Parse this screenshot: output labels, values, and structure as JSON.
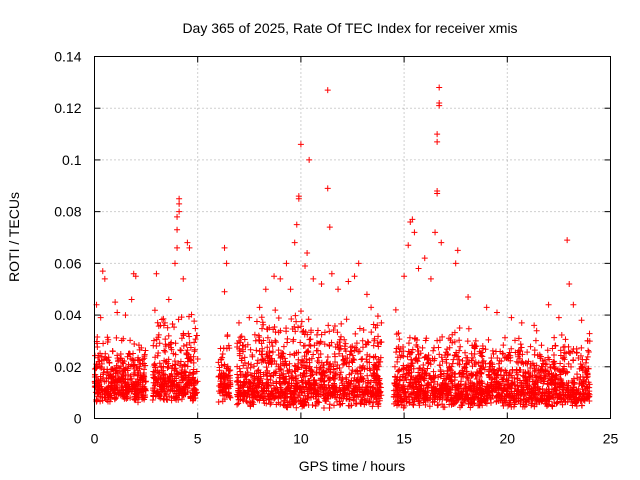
{
  "chart_data": {
    "type": "scatter",
    "title": "Day 365 of 2025, Rate Of TEC Index for receiver xmis",
    "xlabel": "GPS time / hours",
    "ylabel": "ROTI / TECUs",
    "xlim": [
      0,
      25
    ],
    "ylim": [
      0,
      0.14
    ],
    "xticks": [
      0,
      5,
      10,
      15,
      20,
      25
    ],
    "xtick_labels": [
      "0",
      "5",
      "10",
      "15",
      "20",
      "25"
    ],
    "yticks": [
      0,
      0.02,
      0.04,
      0.06,
      0.08,
      0.1,
      0.12,
      0.14
    ],
    "ytick_labels": [
      "0",
      "0.02",
      "0.04",
      "0.06",
      "0.08",
      "0.1",
      "0.12",
      "0.14"
    ],
    "grid": true,
    "marker": "+",
    "color": "#ff0000",
    "series": [
      {
        "name": "ROTI",
        "sampled_points": [
          [
            0.1,
            0.044
          ],
          [
            0.3,
            0.039
          ],
          [
            0.4,
            0.057
          ],
          [
            0.5,
            0.054
          ],
          [
            1.0,
            0.045
          ],
          [
            1.1,
            0.041
          ],
          [
            1.5,
            0.04
          ],
          [
            1.8,
            0.046
          ],
          [
            1.9,
            0.056
          ],
          [
            2.0,
            0.055
          ],
          [
            2.4,
            0.019
          ],
          [
            3.0,
            0.056
          ],
          [
            3.2,
            0.036
          ],
          [
            3.6,
            0.046
          ],
          [
            3.9,
            0.06
          ],
          [
            4.0,
            0.066
          ],
          [
            4.0,
            0.073
          ],
          [
            4.0,
            0.078
          ],
          [
            4.1,
            0.08
          ],
          [
            4.1,
            0.083
          ],
          [
            4.1,
            0.085
          ],
          [
            4.3,
            0.054
          ],
          [
            4.5,
            0.068
          ],
          [
            4.6,
            0.066
          ],
          [
            5.0,
            0.023
          ],
          [
            6.3,
            0.066
          ],
          [
            6.4,
            0.06
          ],
          [
            6.3,
            0.049
          ],
          [
            7.0,
            0.03
          ],
          [
            7.5,
            0.039
          ],
          [
            8.0,
            0.043
          ],
          [
            8.3,
            0.05
          ],
          [
            8.7,
            0.055
          ],
          [
            9.0,
            0.054
          ],
          [
            9.3,
            0.06
          ],
          [
            9.5,
            0.05
          ],
          [
            9.7,
            0.068
          ],
          [
            9.8,
            0.075
          ],
          [
            9.9,
            0.085
          ],
          [
            9.9,
            0.086
          ],
          [
            10.0,
            0.106
          ],
          [
            10.2,
            0.059
          ],
          [
            10.3,
            0.064
          ],
          [
            10.4,
            0.1
          ],
          [
            10.6,
            0.054
          ],
          [
            11.0,
            0.052
          ],
          [
            11.3,
            0.127
          ],
          [
            11.3,
            0.089
          ],
          [
            11.4,
            0.074
          ],
          [
            11.5,
            0.056
          ],
          [
            11.8,
            0.05
          ],
          [
            12.3,
            0.053
          ],
          [
            12.6,
            0.055
          ],
          [
            12.8,
            0.06
          ],
          [
            13.2,
            0.048
          ],
          [
            13.4,
            0.043
          ],
          [
            13.9,
            0.037
          ],
          [
            14.6,
            0.042
          ],
          [
            15.0,
            0.055
          ],
          [
            15.2,
            0.067
          ],
          [
            15.3,
            0.076
          ],
          [
            15.4,
            0.077
          ],
          [
            15.5,
            0.072
          ],
          [
            15.7,
            0.058
          ],
          [
            16.0,
            0.062
          ],
          [
            16.3,
            0.054
          ],
          [
            16.5,
            0.072
          ],
          [
            16.6,
            0.087
          ],
          [
            16.6,
            0.088
          ],
          [
            16.6,
            0.107
          ],
          [
            16.6,
            0.11
          ],
          [
            16.7,
            0.121
          ],
          [
            16.7,
            0.122
          ],
          [
            16.7,
            0.128
          ],
          [
            16.8,
            0.068
          ],
          [
            17.5,
            0.06
          ],
          [
            17.6,
            0.065
          ],
          [
            18.1,
            0.047
          ],
          [
            19.0,
            0.043
          ],
          [
            19.5,
            0.041
          ],
          [
            20.2,
            0.039
          ],
          [
            20.7,
            0.037
          ],
          [
            21.3,
            0.036
          ],
          [
            22.0,
            0.044
          ],
          [
            22.5,
            0.039
          ],
          [
            22.9,
            0.069
          ],
          [
            23.0,
            0.052
          ],
          [
            23.2,
            0.044
          ],
          [
            23.6,
            0.038
          ],
          [
            23.9,
            0.03
          ]
        ],
        "dense_segments": [
          {
            "x_range": [
              0.0,
              2.5
            ],
            "y_low": 0.006,
            "y_high": 0.03
          },
          {
            "x_range": [
              2.8,
              5.0
            ],
            "y_low": 0.006,
            "y_high": 0.04
          },
          {
            "x_range": [
              6.0,
              6.6
            ],
            "y_low": 0.006,
            "y_high": 0.03
          },
          {
            "x_range": [
              6.9,
              13.9
            ],
            "y_low": 0.004,
            "y_high": 0.04
          },
          {
            "x_range": [
              14.5,
              24.0
            ],
            "y_low": 0.004,
            "y_high": 0.032
          }
        ]
      }
    ]
  }
}
